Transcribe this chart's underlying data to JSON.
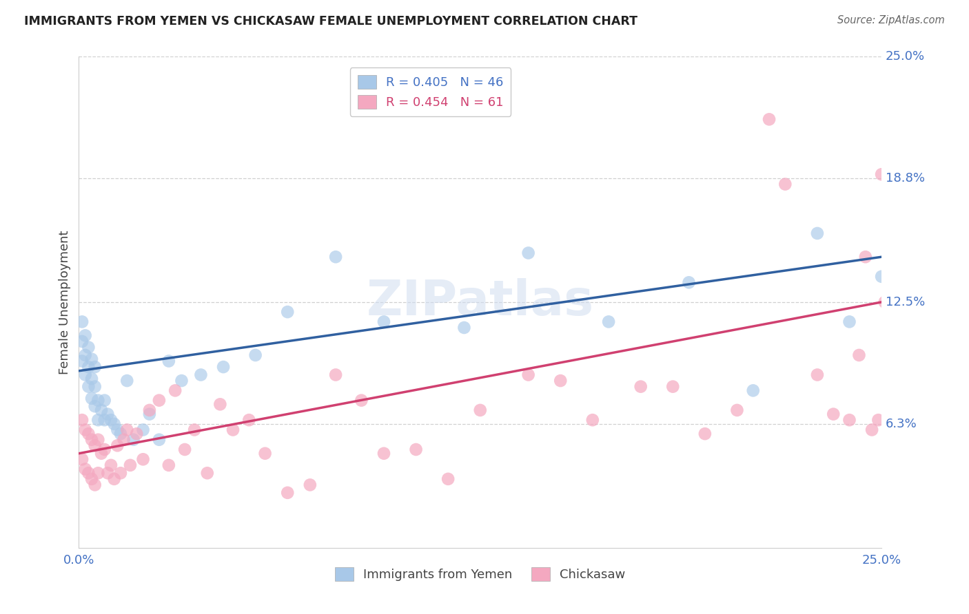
{
  "title": "IMMIGRANTS FROM YEMEN VS CHICKASAW FEMALE UNEMPLOYMENT CORRELATION CHART",
  "source": "Source: ZipAtlas.com",
  "ylabel": "Female Unemployment",
  "xmin": 0.0,
  "xmax": 0.25,
  "ymin": 0.0,
  "ymax": 0.25,
  "right_labels": [
    [
      "6.3%",
      0.063
    ],
    [
      "12.5%",
      0.125
    ],
    [
      "18.8%",
      0.188
    ],
    [
      "25.0%",
      0.25
    ]
  ],
  "legend_entries": [
    {
      "label": "R = 0.405   N = 46",
      "color": "#a8c8e8"
    },
    {
      "label": "R = 0.454   N = 61",
      "color": "#f4a8c0"
    }
  ],
  "legend_bottom": [
    "Immigrants from Yemen",
    "Chickasaw"
  ],
  "color_blue": "#a8c8e8",
  "color_pink": "#f4a8c0",
  "color_blue_line": "#3060a0",
  "color_pink_line": "#d04070",
  "color_text_blue": "#4472c4",
  "color_text_pink": "#d04070",
  "color_grid": "#d0d0d0",
  "watermark": "ZIPatlas",
  "blue_scatter_x": [
    0.001,
    0.001,
    0.001,
    0.002,
    0.002,
    0.002,
    0.003,
    0.003,
    0.003,
    0.004,
    0.004,
    0.004,
    0.005,
    0.005,
    0.005,
    0.006,
    0.006,
    0.007,
    0.008,
    0.008,
    0.009,
    0.01,
    0.011,
    0.012,
    0.013,
    0.015,
    0.017,
    0.02,
    0.022,
    0.025,
    0.028,
    0.032,
    0.038,
    0.045,
    0.055,
    0.065,
    0.08,
    0.095,
    0.12,
    0.14,
    0.165,
    0.19,
    0.21,
    0.23,
    0.24,
    0.25
  ],
  "blue_scatter_y": [
    0.115,
    0.105,
    0.095,
    0.108,
    0.098,
    0.088,
    0.102,
    0.092,
    0.082,
    0.096,
    0.086,
    0.076,
    0.092,
    0.082,
    0.072,
    0.075,
    0.065,
    0.07,
    0.075,
    0.065,
    0.068,
    0.065,
    0.063,
    0.06,
    0.058,
    0.085,
    0.055,
    0.06,
    0.068,
    0.055,
    0.095,
    0.085,
    0.088,
    0.092,
    0.098,
    0.12,
    0.148,
    0.115,
    0.112,
    0.15,
    0.115,
    0.135,
    0.08,
    0.16,
    0.115,
    0.138
  ],
  "pink_scatter_x": [
    0.001,
    0.001,
    0.002,
    0.002,
    0.003,
    0.003,
    0.004,
    0.004,
    0.005,
    0.005,
    0.006,
    0.006,
    0.007,
    0.008,
    0.009,
    0.01,
    0.011,
    0.012,
    0.013,
    0.014,
    0.015,
    0.016,
    0.018,
    0.02,
    0.022,
    0.025,
    0.028,
    0.03,
    0.033,
    0.036,
    0.04,
    0.044,
    0.048,
    0.053,
    0.058,
    0.065,
    0.072,
    0.08,
    0.088,
    0.095,
    0.105,
    0.115,
    0.125,
    0.14,
    0.15,
    0.16,
    0.175,
    0.185,
    0.195,
    0.205,
    0.215,
    0.22,
    0.23,
    0.235,
    0.24,
    0.243,
    0.245,
    0.247,
    0.249,
    0.25,
    0.251
  ],
  "pink_scatter_y": [
    0.065,
    0.045,
    0.06,
    0.04,
    0.058,
    0.038,
    0.055,
    0.035,
    0.052,
    0.032,
    0.055,
    0.038,
    0.048,
    0.05,
    0.038,
    0.042,
    0.035,
    0.052,
    0.038,
    0.055,
    0.06,
    0.042,
    0.058,
    0.045,
    0.07,
    0.075,
    0.042,
    0.08,
    0.05,
    0.06,
    0.038,
    0.073,
    0.06,
    0.065,
    0.048,
    0.028,
    0.032,
    0.088,
    0.075,
    0.048,
    0.05,
    0.035,
    0.07,
    0.088,
    0.085,
    0.065,
    0.082,
    0.082,
    0.058,
    0.07,
    0.218,
    0.185,
    0.088,
    0.068,
    0.065,
    0.098,
    0.148,
    0.06,
    0.065,
    0.19,
    0.125
  ],
  "blue_line_x": [
    0.0,
    0.25
  ],
  "blue_line_y_start": 0.09,
  "blue_line_y_end": 0.148,
  "pink_line_x": [
    0.0,
    0.25
  ],
  "pink_line_y_start": 0.048,
  "pink_line_y_end": 0.125
}
